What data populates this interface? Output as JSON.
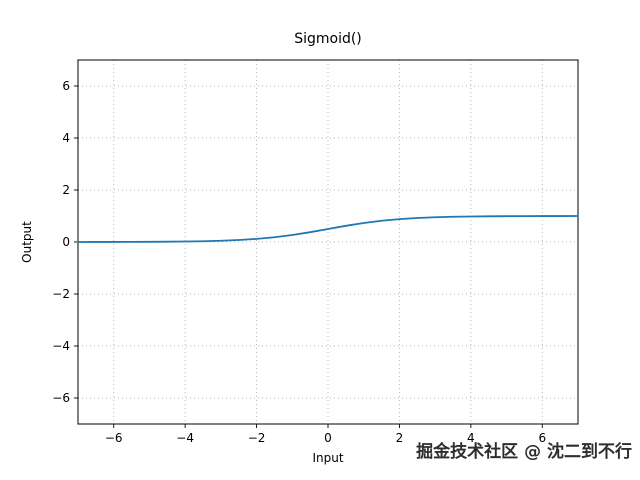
{
  "figure": {
    "title": "Sigmoid()",
    "watermark": "掘金技术社区 @ 沈二到不行"
  },
  "chart_data": {
    "type": "line",
    "title": "Sigmoid()",
    "xlabel": "Input",
    "ylabel": "Output",
    "xlim": [
      -7,
      7
    ],
    "ylim": [
      -7,
      7
    ],
    "xticks": [
      -6,
      -4,
      -2,
      0,
      2,
      4,
      6
    ],
    "yticks": [
      -6,
      -4,
      -2,
      0,
      2,
      4,
      6
    ],
    "grid": true,
    "grid_style": "dotted",
    "grid_color": "#b0b0b0",
    "spine_color": "#000000",
    "legend": "none",
    "series": [
      {
        "name": "sigmoid",
        "color": "#1f77b4",
        "x": [
          -7,
          -6.5,
          -6,
          -5.5,
          -5,
          -4.5,
          -4,
          -3.5,
          -3,
          -2.5,
          -2,
          -1.5,
          -1,
          -0.5,
          0,
          0.5,
          1,
          1.5,
          2,
          2.5,
          3,
          3.5,
          4,
          4.5,
          5,
          5.5,
          6,
          6.5,
          7
        ],
        "y": [
          0.0009,
          0.0015,
          0.0025,
          0.0041,
          0.0067,
          0.011,
          0.018,
          0.0293,
          0.0474,
          0.0759,
          0.1192,
          0.1824,
          0.2689,
          0.3775,
          0.5,
          0.6225,
          0.7311,
          0.8176,
          0.8808,
          0.9241,
          0.9526,
          0.9707,
          0.982,
          0.989,
          0.9933,
          0.9959,
          0.9975,
          0.9985,
          0.9991
        ]
      }
    ]
  }
}
